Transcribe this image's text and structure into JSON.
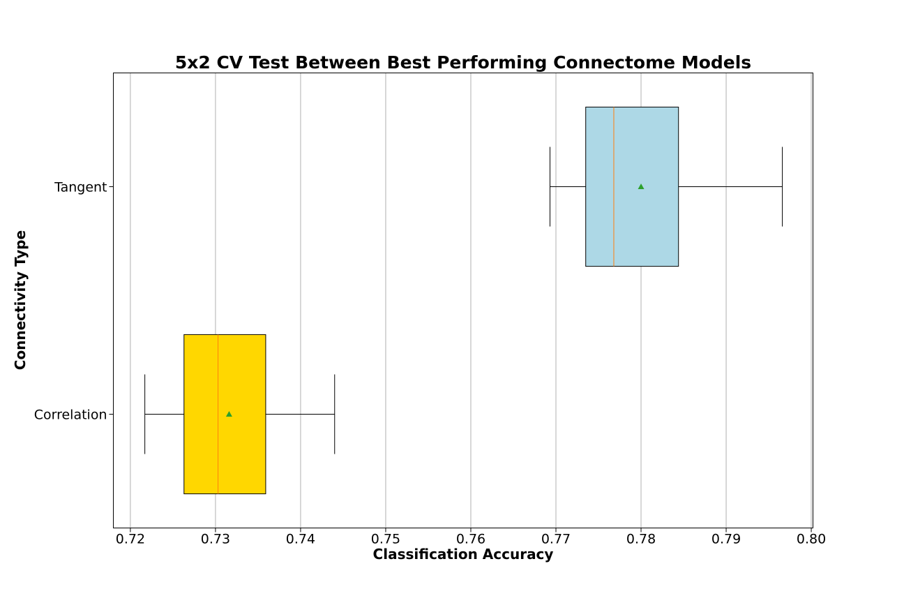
{
  "chart_data": {
    "type": "boxplot",
    "orientation": "horizontal",
    "title": "5x2 CV Test Between Best Performing Connectome Models",
    "xlabel": "Classification Accuracy",
    "ylabel": "Connectivity Type",
    "xlim": [
      0.718,
      0.8002
    ],
    "xticks": [
      0.72,
      0.73,
      0.74,
      0.75,
      0.76,
      0.77,
      0.78,
      0.79,
      0.8
    ],
    "xtick_labels": [
      "0.72",
      "0.73",
      "0.74",
      "0.75",
      "0.76",
      "0.77",
      "0.78",
      "0.79",
      "0.80"
    ],
    "grid": "vertical",
    "categories": [
      "Correlation",
      "Tangent"
    ],
    "boxes": [
      {
        "category": "Correlation",
        "whisker_low": 0.7217,
        "q1": 0.7263,
        "median": 0.7303,
        "q3": 0.7359,
        "whisker_high": 0.744,
        "mean": 0.7316,
        "color": "#ffd700"
      },
      {
        "category": "Tangent",
        "whisker_low": 0.7693,
        "q1": 0.7735,
        "median": 0.7768,
        "q3": 0.7844,
        "whisker_high": 0.7966,
        "mean": 0.78,
        "color": "#add8e6"
      }
    ],
    "colors": {
      "median": "#ff7f0e",
      "mean_marker": "#2ca02c",
      "grid": "#b0b0b0",
      "axes": "#000000"
    }
  }
}
